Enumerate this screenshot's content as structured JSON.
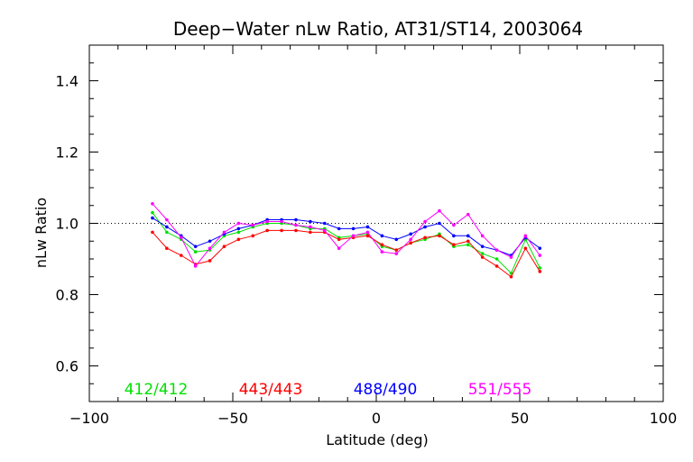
{
  "chart_data": {
    "type": "line",
    "title": "Deep−Water nLw Ratio, AT31/ST14, 2003064",
    "xlabel": "Latitude (deg)",
    "ylabel": "nLw Ratio",
    "xlim": [
      -100,
      100
    ],
    "ylim": [
      0.5,
      1.5
    ],
    "x_ticks": [
      -100,
      -50,
      0,
      50,
      100
    ],
    "x_tick_labels": [
      "−100",
      "−50",
      "0",
      "50",
      "100"
    ],
    "y_ticks": [
      0.6,
      0.8,
      1.0,
      1.2,
      1.4
    ],
    "y_tick_labels": [
      "0.6",
      "0.8",
      "1.0",
      "1.2",
      "1.4"
    ],
    "reference_line": 1.0,
    "grid": false,
    "legend_placement": "bottom",
    "series": [
      {
        "name": "412/412",
        "color": "#00e000",
        "points": [
          [
            -78,
            1.03
          ],
          [
            -73,
            0.975
          ],
          [
            -68,
            0.955
          ],
          [
            -63,
            0.92
          ],
          [
            -58,
            0.925
          ],
          [
            -53,
            0.965
          ],
          [
            -48,
            0.975
          ],
          [
            -43,
            0.99
          ],
          [
            -38,
            1.0
          ],
          [
            -33,
            1.0
          ],
          [
            -28,
            0.995
          ],
          [
            -23,
            0.985
          ],
          [
            -18,
            0.985
          ],
          [
            -13,
            0.96
          ],
          [
            -8,
            0.965
          ],
          [
            -3,
            0.97
          ],
          [
            2,
            0.935
          ],
          [
            7,
            0.925
          ],
          [
            12,
            0.945
          ],
          [
            17,
            0.955
          ],
          [
            22,
            0.97
          ],
          [
            27,
            0.935
          ],
          [
            32,
            0.94
          ],
          [
            37,
            0.915
          ],
          [
            42,
            0.9
          ],
          [
            47,
            0.86
          ],
          [
            52,
            0.955
          ],
          [
            57,
            0.875
          ]
        ]
      },
      {
        "name": "443/443",
        "color": "#ff0000",
        "points": [
          [
            -78,
            0.975
          ],
          [
            -73,
            0.93
          ],
          [
            -68,
            0.91
          ],
          [
            -63,
            0.885
          ],
          [
            -58,
            0.895
          ],
          [
            -53,
            0.935
          ],
          [
            -48,
            0.955
          ],
          [
            -43,
            0.965
          ],
          [
            -38,
            0.98
          ],
          [
            -33,
            0.98
          ],
          [
            -28,
            0.98
          ],
          [
            -23,
            0.975
          ],
          [
            -18,
            0.975
          ],
          [
            -13,
            0.955
          ],
          [
            -8,
            0.96
          ],
          [
            -3,
            0.965
          ],
          [
            2,
            0.94
          ],
          [
            7,
            0.925
          ],
          [
            12,
            0.945
          ],
          [
            17,
            0.96
          ],
          [
            22,
            0.965
          ],
          [
            27,
            0.94
          ],
          [
            32,
            0.95
          ],
          [
            37,
            0.905
          ],
          [
            42,
            0.88
          ],
          [
            47,
            0.85
          ],
          [
            52,
            0.93
          ],
          [
            57,
            0.865
          ]
        ]
      },
      {
        "name": "488/490",
        "color": "#0000ff",
        "points": [
          [
            -78,
            1.015
          ],
          [
            -73,
            0.99
          ],
          [
            -68,
            0.965
          ],
          [
            -63,
            0.935
          ],
          [
            -58,
            0.95
          ],
          [
            -53,
            0.97
          ],
          [
            -48,
            0.985
          ],
          [
            -43,
            0.995
          ],
          [
            -38,
            1.01
          ],
          [
            -33,
            1.01
          ],
          [
            -28,
            1.01
          ],
          [
            -23,
            1.005
          ],
          [
            -18,
            1.0
          ],
          [
            -13,
            0.985
          ],
          [
            -8,
            0.985
          ],
          [
            -3,
            0.99
          ],
          [
            2,
            0.965
          ],
          [
            7,
            0.955
          ],
          [
            12,
            0.97
          ],
          [
            17,
            0.99
          ],
          [
            22,
            1.0
          ],
          [
            27,
            0.965
          ],
          [
            32,
            0.965
          ],
          [
            37,
            0.935
          ],
          [
            42,
            0.925
          ],
          [
            47,
            0.91
          ],
          [
            52,
            0.96
          ],
          [
            57,
            0.93
          ]
        ]
      },
      {
        "name": "551/555",
        "color": "#ff00ff",
        "points": [
          [
            -78,
            1.055
          ],
          [
            -73,
            1.01
          ],
          [
            -68,
            0.96
          ],
          [
            -63,
            0.88
          ],
          [
            -58,
            0.93
          ],
          [
            -53,
            0.975
          ],
          [
            -48,
            1.0
          ],
          [
            -43,
            0.995
          ],
          [
            -38,
            1.005
          ],
          [
            -33,
            1.005
          ],
          [
            -28,
            0.995
          ],
          [
            -23,
            0.99
          ],
          [
            -18,
            0.98
          ],
          [
            -13,
            0.93
          ],
          [
            -8,
            0.965
          ],
          [
            -3,
            0.975
          ],
          [
            2,
            0.92
          ],
          [
            7,
            0.915
          ],
          [
            12,
            0.955
          ],
          [
            17,
            1.005
          ],
          [
            22,
            1.035
          ],
          [
            27,
            0.995
          ],
          [
            32,
            1.025
          ],
          [
            37,
            0.965
          ],
          [
            42,
            0.925
          ],
          [
            47,
            0.905
          ],
          [
            52,
            0.965
          ],
          [
            57,
            0.91
          ]
        ]
      }
    ]
  }
}
